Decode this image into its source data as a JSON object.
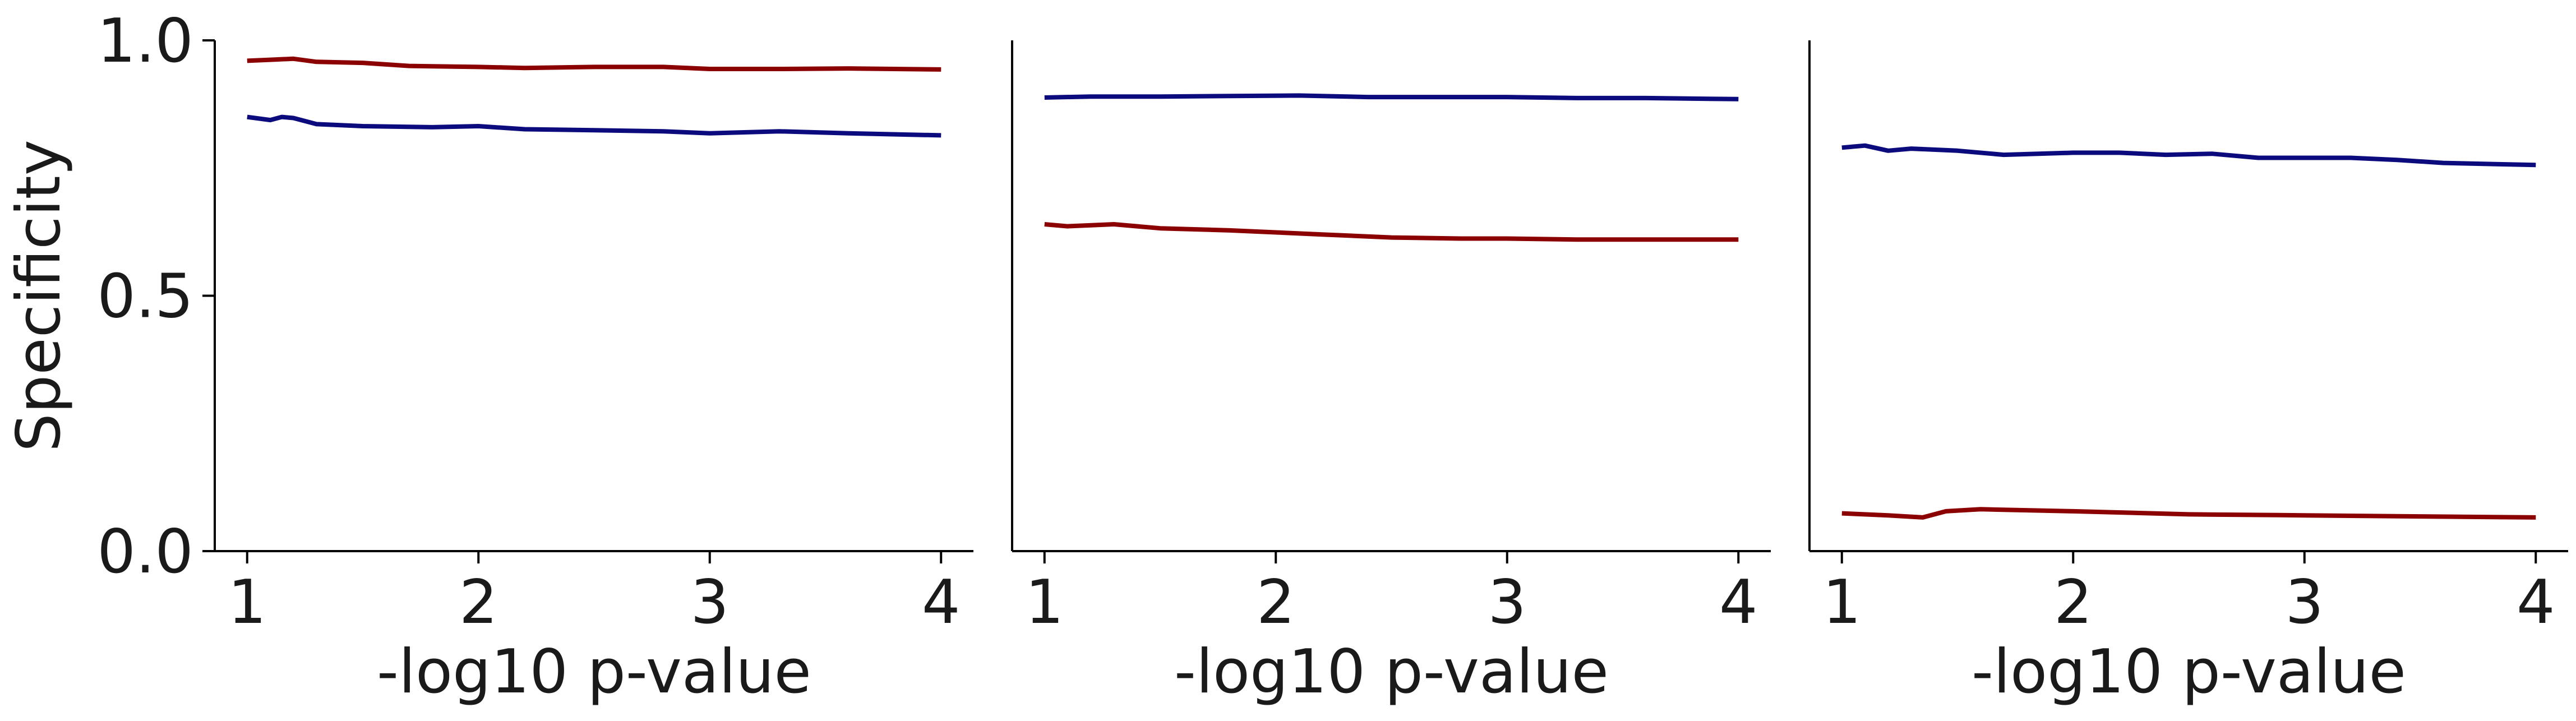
{
  "colors": {
    "red_series": "#8b0000",
    "blue_series": "#0b0b7d",
    "axis": "#000000"
  },
  "chart_data": [
    {
      "type": "line",
      "xlabel": "-log10 p-value",
      "ylabel": "Specificity",
      "xlim": [
        0.86,
        4.14
      ],
      "ylim": [
        0.0,
        1.0
      ],
      "xticks": [
        1,
        2,
        3,
        4
      ],
      "yticks": [
        0.0,
        0.5,
        1.0
      ],
      "yticklabels": [
        "0.0",
        "0.5",
        "1.0"
      ],
      "grid": false,
      "series": [
        {
          "color": "#8b0000",
          "x": [
            1.0,
            1.1,
            1.2,
            1.3,
            1.5,
            1.7,
            2.0,
            2.2,
            2.5,
            2.8,
            3.0,
            3.3,
            3.6,
            4.0
          ],
          "y": [
            0.96,
            0.962,
            0.964,
            0.958,
            0.956,
            0.95,
            0.948,
            0.946,
            0.948,
            0.948,
            0.944,
            0.944,
            0.945,
            0.943
          ]
        },
        {
          "color": "#0b0b7d",
          "x": [
            1.0,
            1.1,
            1.15,
            1.2,
            1.3,
            1.5,
            1.8,
            2.0,
            2.2,
            2.5,
            2.8,
            3.0,
            3.3,
            3.6,
            4.0
          ],
          "y": [
            0.85,
            0.844,
            0.85,
            0.848,
            0.836,
            0.832,
            0.83,
            0.832,
            0.826,
            0.824,
            0.822,
            0.818,
            0.822,
            0.818,
            0.814
          ]
        }
      ]
    },
    {
      "type": "line",
      "xlabel": "-log10 p-value",
      "ylabel": "",
      "xlim": [
        0.86,
        4.14
      ],
      "ylim": [
        0.0,
        1.0
      ],
      "xticks": [
        1,
        2,
        3,
        4
      ],
      "yticks": [],
      "yticklabels": [],
      "grid": false,
      "series": [
        {
          "color": "#0b0b7d",
          "x": [
            1.0,
            1.2,
            1.5,
            1.8,
            2.1,
            2.4,
            2.7,
            3.0,
            3.3,
            3.6,
            4.0
          ],
          "y": [
            0.888,
            0.89,
            0.89,
            0.891,
            0.892,
            0.889,
            0.889,
            0.889,
            0.887,
            0.887,
            0.885
          ]
        },
        {
          "color": "#8b0000",
          "x": [
            1.0,
            1.1,
            1.3,
            1.5,
            1.8,
            2.0,
            2.2,
            2.5,
            2.8,
            3.0,
            3.3,
            3.6,
            4.0
          ],
          "y": [
            0.64,
            0.636,
            0.64,
            0.632,
            0.628,
            0.624,
            0.62,
            0.614,
            0.612,
            0.612,
            0.61,
            0.61,
            0.61
          ]
        }
      ]
    },
    {
      "type": "line",
      "xlabel": "-log10 p-value",
      "ylabel": "",
      "xlim": [
        0.86,
        4.14
      ],
      "ylim": [
        0.0,
        1.0
      ],
      "xticks": [
        1,
        2,
        3,
        4
      ],
      "yticks": [],
      "yticklabels": [],
      "grid": false,
      "series": [
        {
          "color": "#0b0b7d",
          "x": [
            1.0,
            1.1,
            1.2,
            1.3,
            1.5,
            1.7,
            2.0,
            2.2,
            2.4,
            2.6,
            2.8,
            3.0,
            3.2,
            3.4,
            3.6,
            4.0
          ],
          "y": [
            0.79,
            0.794,
            0.784,
            0.788,
            0.784,
            0.776,
            0.78,
            0.78,
            0.776,
            0.778,
            0.77,
            0.77,
            0.77,
            0.766,
            0.76,
            0.756
          ]
        },
        {
          "color": "#8b0000",
          "x": [
            1.0,
            1.2,
            1.35,
            1.45,
            1.6,
            2.0,
            2.5,
            3.0,
            3.5,
            4.0
          ],
          "y": [
            0.074,
            0.07,
            0.066,
            0.078,
            0.082,
            0.078,
            0.072,
            0.07,
            0.068,
            0.066
          ]
        }
      ]
    }
  ]
}
